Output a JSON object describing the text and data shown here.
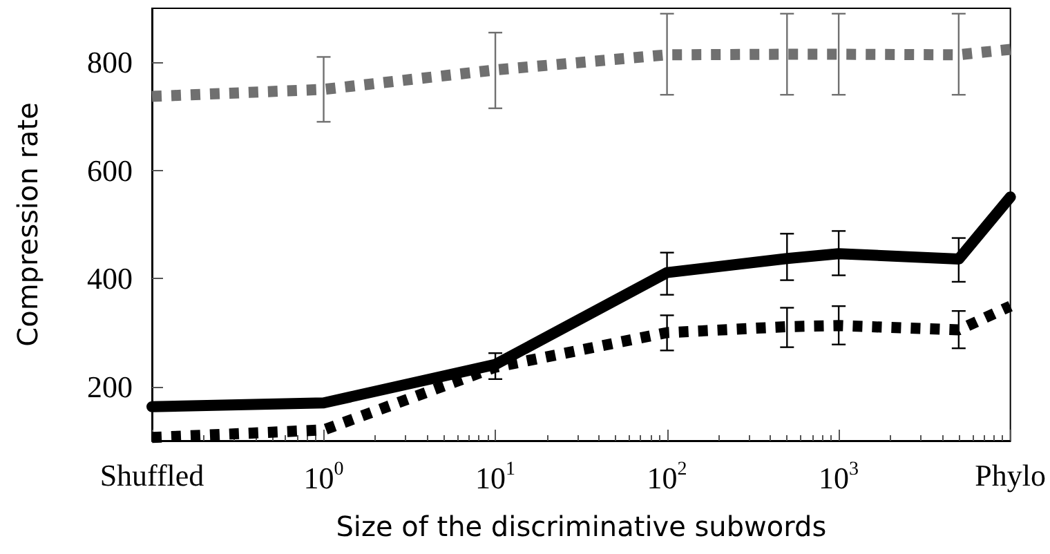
{
  "chart_data": {
    "type": "line",
    "xlabel": "Size of the discriminative subwords",
    "ylabel": "Compression rate",
    "log": "x",
    "grid": false,
    "marker": "none",
    "xlim": [
      0.1,
      10000
    ],
    "ylim": [
      100,
      900
    ],
    "xticks": [
      {
        "value": 0.1,
        "label": "Shuffled"
      },
      {
        "value": 1,
        "label": "10$^{0}$"
      },
      {
        "value": 10,
        "label": "10$^{1}$"
      },
      {
        "value": 100,
        "label": "10$^{2}$"
      },
      {
        "value": 1000,
        "label": "10$^{3}$"
      },
      {
        "value": 10000,
        "label": "Phylo"
      }
    ],
    "yticks": [
      200,
      400,
      600,
      800
    ],
    "series": [
      {
        "color": "#707070",
        "line_style": "dotted",
        "x": [
          0.1,
          1,
          10,
          100,
          500,
          1000,
          5000,
          10000
        ],
        "values": [
          737,
          750,
          786,
          814,
          815,
          815,
          814,
          824
        ],
        "errors": [
          null,
          [
            690,
            810
          ],
          [
            715,
            855
          ],
          [
            740,
            890
          ],
          [
            740,
            890
          ],
          [
            740,
            890
          ],
          [
            740,
            890
          ],
          null
        ]
      },
      {
        "color": "#000000",
        "line_style": "solid",
        "x": [
          0.1,
          1,
          10,
          100,
          500,
          1000,
          5000,
          10000
        ],
        "values": [
          163,
          170,
          241,
          411,
          437,
          446,
          436,
          551
        ],
        "errors": [
          null,
          null,
          [
            214,
            262
          ],
          [
            370,
            448
          ],
          [
            397,
            483
          ],
          [
            406,
            488
          ],
          [
            394,
            475
          ],
          null
        ]
      },
      {
        "color": "#000000",
        "line_style": "dotted",
        "x": [
          0.1,
          1,
          10,
          100,
          500,
          1000,
          5000,
          10000
        ],
        "values": [
          106,
          120,
          236,
          300,
          311,
          313,
          305,
          349
        ],
        "errors": [
          null,
          null,
          null,
          [
            267,
            332
          ],
          [
            273,
            346
          ],
          [
            278,
            349
          ],
          [
            271,
            340
          ],
          null
        ]
      }
    ]
  }
}
